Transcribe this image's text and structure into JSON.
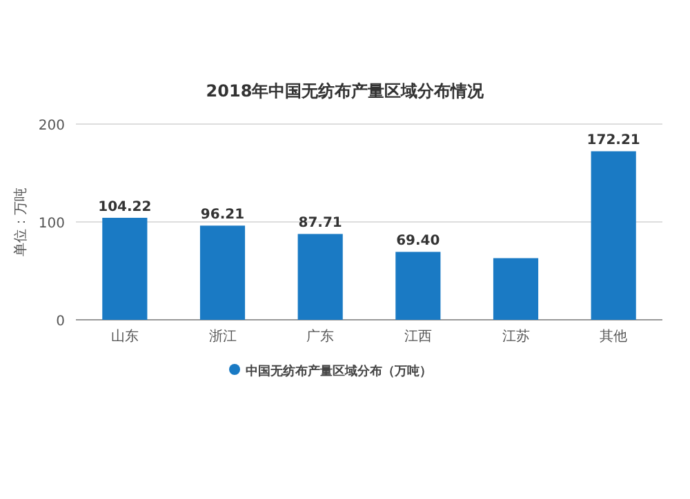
{
  "chart_data": {
    "type": "bar",
    "title": "2018年中国无纺布产量区域分布情况",
    "ylabel": "单位：万吨",
    "categories": [
      "山东",
      "浙江",
      "广东",
      "江西",
      "江苏",
      "其他"
    ],
    "series": [
      {
        "name": "中国无纺布产量区域分布（万吨）",
        "color": "#1a7ac4",
        "values": [
          104.22,
          96.21,
          87.71,
          69.4,
          63,
          172.21
        ],
        "value_labels": [
          "104.22",
          "96.21",
          "87.71",
          "69.40",
          null,
          "172.21"
        ]
      }
    ],
    "ylim": [
      0,
      200
    ],
    "yticks": [
      0,
      100,
      200
    ],
    "grid": "y",
    "legend": "bottom"
  }
}
